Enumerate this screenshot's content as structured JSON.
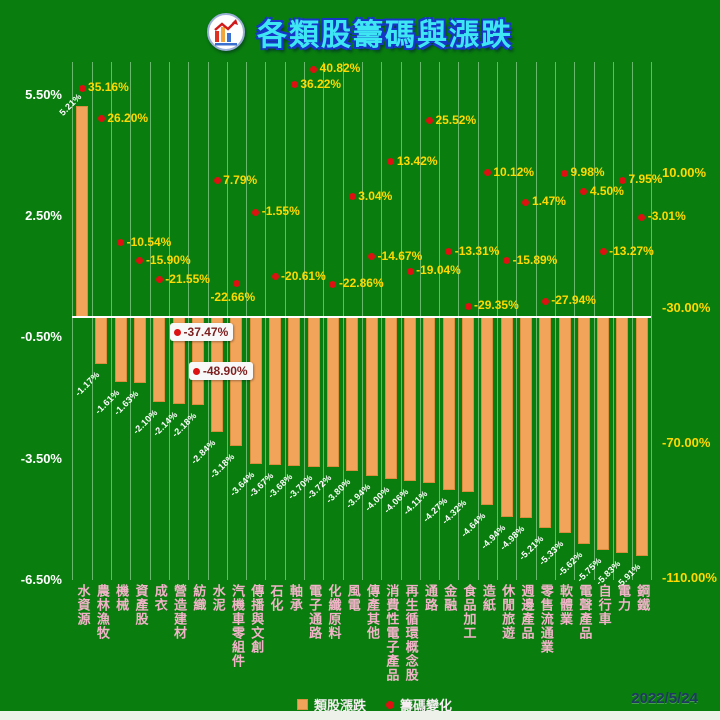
{
  "header": {
    "title": "各類股籌碼與漲跌"
  },
  "chart_data": {
    "type": "bar",
    "title": "各類股籌碼與漲跌",
    "date": "2022/5/24",
    "grid": "vertical",
    "legend_position": "bottom",
    "categories": [
      "水資源",
      "農林漁牧",
      "機械",
      "資產股",
      "成衣",
      "營造建材",
      "紡織",
      "水泥",
      "汽機車零組件",
      "傳播與文創",
      "石化",
      "軸承",
      "電子通路",
      "化纖原料",
      "風電",
      "傳產其他",
      "消費性電子產品",
      "再生循環概念股",
      "通路",
      "金融",
      "食品加工",
      "造紙",
      "休閒旅遊",
      "週邊產品",
      "零售流通業",
      "軟體業",
      "電聲產品",
      "自行車",
      "電力",
      "鋼鐵"
    ],
    "series": [
      {
        "name": "類股漲跌",
        "type": "bar",
        "axis": "left",
        "unit": "%",
        "values": [
          5.21,
          -1.17,
          -1.61,
          -1.63,
          -2.1,
          -2.14,
          -2.18,
          -2.84,
          -3.18,
          -3.64,
          -3.67,
          -3.68,
          -3.7,
          -3.72,
          -3.8,
          -3.94,
          -4.0,
          -4.06,
          -4.11,
          -4.27,
          -4.32,
          -4.64,
          -4.94,
          -4.98,
          -5.21,
          -5.33,
          -5.62,
          -5.75,
          -5.83,
          -5.91
        ]
      },
      {
        "name": "籌碼變化",
        "type": "scatter",
        "axis": "right",
        "unit": "%",
        "values": [
          35.16,
          26.2,
          -10.54,
          -15.9,
          -21.55,
          -37.47,
          -48.9,
          7.79,
          -22.66,
          -1.55,
          -20.61,
          36.22,
          40.82,
          -22.86,
          3.04,
          -14.67,
          13.42,
          -19.04,
          25.52,
          -13.31,
          -29.35,
          10.12,
          -15.89,
          1.47,
          -27.94,
          9.98,
          4.5,
          -13.27,
          7.95,
          -3.01
        ]
      }
    ],
    "left_axis": {
      "tick_values": [
        5.5,
        2.5,
        -0.5,
        -3.5,
        -6.5
      ],
      "tick_labels": [
        "5.50%",
        "2.50%",
        "-0.50%",
        "-3.50%",
        "-6.50%"
      ]
    },
    "right_axis": {
      "tick_values": [
        10,
        -30,
        -70,
        -110
      ],
      "tick_labels": [
        "10.00%",
        "-30.00%",
        "-70.00%",
        "-110.00%"
      ]
    },
    "highlighted_point_indices": [
      5,
      6
    ]
  },
  "legend": {
    "bar_label": "類股漲跌",
    "dot_label": "籌碼變化"
  },
  "footer": {
    "date": "2022/5/24"
  },
  "colors": {
    "background": "#097d0e",
    "bar": "#f2a55a",
    "dot": "#dd1111",
    "dot_label": "#ffd900",
    "axis_left": "#ffffff",
    "axis_right": "#ffd900",
    "category_label": "#f2b3c9",
    "title": "#3ee6f4",
    "title_outline": "#1636c8",
    "date": "#1f3864",
    "callout_bg": "#f8f8f8",
    "callout_text": "#7d1f1f"
  }
}
